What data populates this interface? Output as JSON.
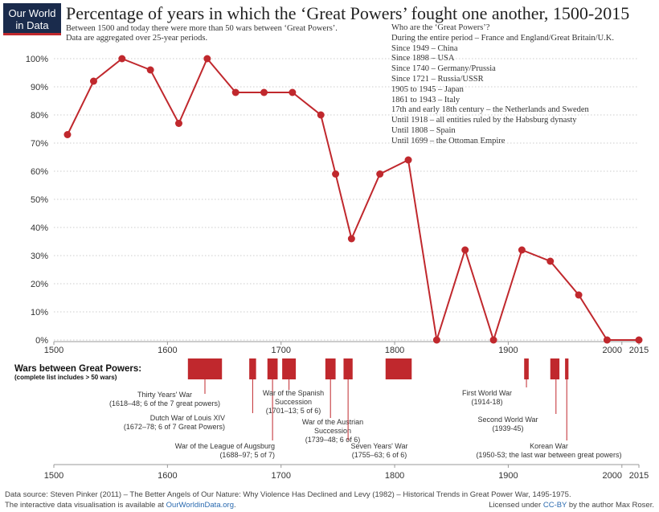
{
  "logo": {
    "line1": "Our World",
    "line2": "in Data"
  },
  "title": "Percentage of years in which the ‘Great Powers’ fought one another, 1500-2015",
  "subtitle_line1": "Between 1500 and today there were more than 50 wars between ‘Great Powers’.",
  "subtitle_line2": "Data are aggregated over 25-year periods.",
  "great_powers": {
    "heading": "Who are the ‘Great Powers’?",
    "items": [
      "During the entire period – France and England/Great Britain/U.K.",
      "Since 1949 – China",
      "Since 1898 – USA",
      "Since 1740 – Germany/Prussia",
      "Since 1721 – Russia/USSR",
      "1905 to 1945 – Japan",
      "1861 to 1943 – Italy",
      "17th and early 18th century – the Netherlands and Sweden",
      "Until 1918 – all entities ruled by the Habsburg dynasty",
      "Until 1808 – Spain",
      "Until 1699 – the Ottoman Empire"
    ]
  },
  "chart_data": {
    "type": "line",
    "x": [
      1512,
      1535,
      1560,
      1585,
      1610,
      1635,
      1660,
      1685,
      1710,
      1735,
      1748,
      1762,
      1787,
      1812,
      1837,
      1862,
      1887,
      1912,
      1937,
      1962,
      1987,
      2015
    ],
    "y": [
      73,
      92,
      100,
      96,
      77,
      100,
      88,
      88,
      88,
      80,
      59,
      36,
      59,
      64,
      0,
      32,
      0,
      32,
      28,
      16,
      0,
      0
    ],
    "xlim": [
      1500,
      2015
    ],
    "ylim": [
      0,
      100
    ],
    "x_ticks": [
      "1500",
      "1600",
      "1700",
      "1800",
      "1900",
      "2000",
      "2015"
    ],
    "y_ticks": [
      "0%",
      "10%",
      "20%",
      "30%",
      "40%",
      "50%",
      "60%",
      "70%",
      "80%",
      "90%",
      "100%"
    ],
    "line_color": "#c0282d",
    "grid": "horizontal dotted"
  },
  "wars": {
    "heading": "Wars between Great Powers:",
    "subheading": "(complete list includes > 50 wars)",
    "items": [
      {
        "name": "Thirty Years' War",
        "detail": "(1618–48; 6 of the 7 great powers)",
        "start": 1618,
        "end": 1648
      },
      {
        "name": "Dutch War of Louis XIV",
        "detail": "(1672–78; 6 of 7 Great Powers)",
        "start": 1672,
        "end": 1678
      },
      {
        "name": "War of the League of Augsburg",
        "detail": "(1688–97; 5 of 7)",
        "start": 1688,
        "end": 1697
      },
      {
        "name": "War of the Spanish Succession",
        "detail": "(1701–13; 5 of 6)",
        "start": 1701,
        "end": 1713
      },
      {
        "name": "War of the Austrian Succession",
        "detail": "(1739–48; 6 of 6)",
        "start": 1739,
        "end": 1748
      },
      {
        "name": "Seven Years' War",
        "detail": "(1755–63; 6 of 6)",
        "start": 1755,
        "end": 1763
      },
      {
        "name": "",
        "detail": "",
        "start": 1792,
        "end": 1815
      },
      {
        "name": "First World War",
        "detail": "(1914-18)",
        "start": 1914,
        "end": 1918
      },
      {
        "name": "",
        "detail": "",
        "start": 1937,
        "end": 1945
      },
      {
        "name": "Second World War",
        "detail": "(1939-45)",
        "start": 1939,
        "end": 1945
      },
      {
        "name": "Korean War",
        "detail": "(1950-53; the last war between great powers)",
        "start": 1950,
        "end": 1953
      }
    ]
  },
  "footer": {
    "source": "Data source: Steven Pinker (2011) – The Better Angels of Our Nature: Why Violence Has Declined and Levy (1982) – Historical Trends in Great Power War, 1495-1975.",
    "interactive_prefix": "The interactive data visualisation is available at ",
    "interactive_link": "OurWorldinData.org",
    "interactive_suffix": ".",
    "license_prefix": "Licensed under ",
    "license_link": "CC-BY",
    "license_suffix": " by the author Max Roser."
  }
}
